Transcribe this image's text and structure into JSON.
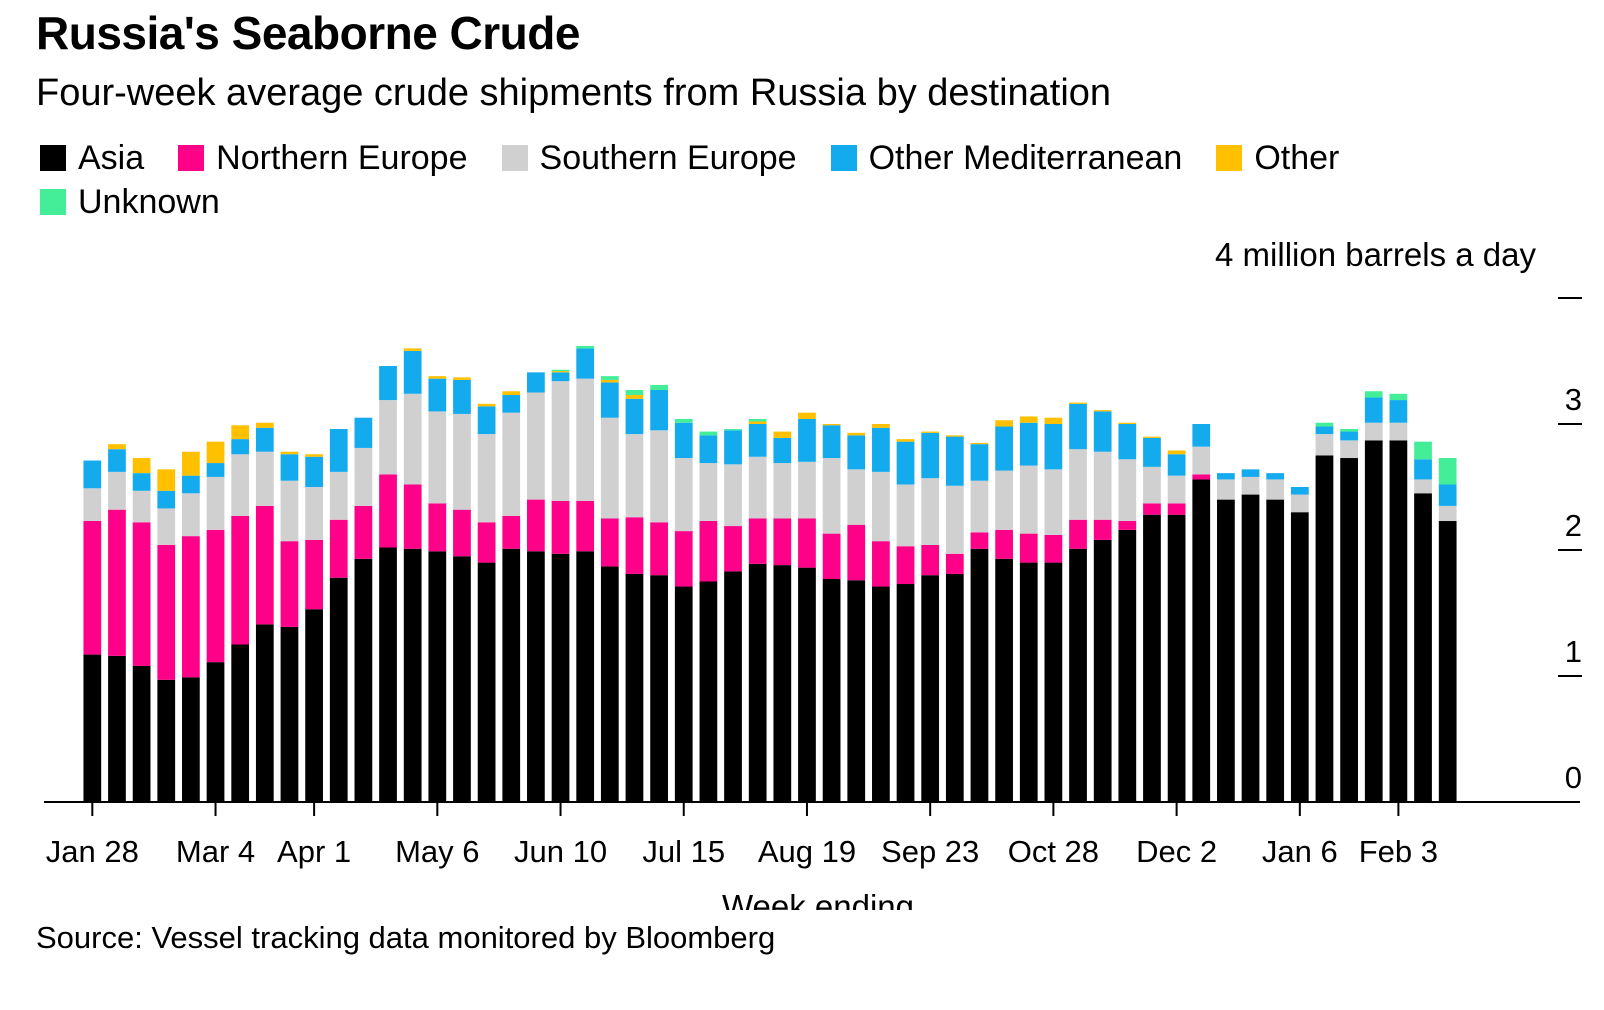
{
  "title": "Russia's Seaborne Crude",
  "subtitle": "Four-week average crude shipments from Russia by destination",
  "source": "Source: Vessel tracking data monitored by Bloomberg",
  "chart_data": {
    "type": "bar",
    "stacked": true,
    "title": "Russia's Seaborne Crude",
    "subtitle": "Four-week average crude shipments from Russia by destination",
    "unit_label": "4 million barrels a day",
    "xlabel": "Week ending",
    "ylabel": "",
    "ylim": [
      0,
      4
    ],
    "y_ticks": [
      "0",
      "1",
      "2",
      "3"
    ],
    "x_tick_labels": [
      "Jan 28",
      "Mar 4",
      "Apr 1",
      "May 6",
      "Jun 10",
      "Jul 15",
      "Aug 19",
      "Sep 23",
      "Oct 28",
      "Dec 2",
      "Jan 6",
      "Feb 3"
    ],
    "x_tick_positions": [
      0,
      5,
      9,
      14,
      19,
      24,
      29,
      34,
      39,
      44,
      49,
      53
    ],
    "bar_count": 56,
    "legend_position": "top-left",
    "series": [
      {
        "name": "Asia",
        "color": "#000000",
        "values": [
          1.17,
          1.16,
          1.08,
          0.97,
          0.99,
          1.11,
          1.25,
          1.41,
          1.39,
          1.53,
          1.78,
          1.93,
          2.02,
          2.01,
          1.99,
          1.95,
          1.9,
          2.01,
          1.99,
          1.97,
          1.99,
          1.87,
          1.81,
          1.8,
          1.71,
          1.75,
          1.83,
          1.89,
          1.88,
          1.86,
          1.77,
          1.76,
          1.71,
          1.73,
          1.8,
          1.81,
          2.01,
          1.93,
          1.9,
          1.9,
          2.01,
          2.08,
          2.16,
          2.28,
          2.28,
          2.56,
          2.4,
          2.44,
          2.4,
          2.3,
          2.75,
          2.73,
          2.87,
          2.87,
          2.45,
          2.23
        ]
      },
      {
        "name": "Northern Europe",
        "color": "#ff0088",
        "values": [
          1.06,
          1.16,
          1.14,
          1.07,
          1.12,
          1.05,
          1.02,
          0.94,
          0.68,
          0.55,
          0.46,
          0.42,
          0.58,
          0.51,
          0.38,
          0.37,
          0.32,
          0.26,
          0.41,
          0.42,
          0.4,
          0.38,
          0.45,
          0.42,
          0.44,
          0.48,
          0.36,
          0.36,
          0.37,
          0.39,
          0.36,
          0.44,
          0.36,
          0.3,
          0.24,
          0.16,
          0.13,
          0.23,
          0.23,
          0.22,
          0.23,
          0.16,
          0.07,
          0.09,
          0.09,
          0.04,
          0,
          0,
          0,
          0,
          0,
          0,
          0,
          0,
          0,
          0
        ]
      },
      {
        "name": "Southern Europe",
        "color": "#d0d0d0",
        "values": [
          0.26,
          0.3,
          0.25,
          0.29,
          0.34,
          0.42,
          0.49,
          0.43,
          0.48,
          0.42,
          0.38,
          0.46,
          0.59,
          0.72,
          0.73,
          0.76,
          0.7,
          0.82,
          0.85,
          0.95,
          0.97,
          0.8,
          0.66,
          0.73,
          0.58,
          0.46,
          0.49,
          0.49,
          0.44,
          0.45,
          0.6,
          0.44,
          0.55,
          0.49,
          0.53,
          0.54,
          0.41,
          0.47,
          0.54,
          0.52,
          0.56,
          0.54,
          0.49,
          0.29,
          0.22,
          0.22,
          0.16,
          0.14,
          0.16,
          0.14,
          0.17,
          0.14,
          0.14,
          0.14,
          0.11,
          0.12
        ]
      },
      {
        "name": "Other Mediterranean",
        "color": "#14aaee",
        "values": [
          0.22,
          0.18,
          0.14,
          0.14,
          0.14,
          0.11,
          0.12,
          0.19,
          0.21,
          0.24,
          0.34,
          0.24,
          0.27,
          0.34,
          0.26,
          0.27,
          0.22,
          0.14,
          0.16,
          0.07,
          0.24,
          0.28,
          0.28,
          0.32,
          0.28,
          0.22,
          0.27,
          0.26,
          0.2,
          0.34,
          0.26,
          0.27,
          0.35,
          0.34,
          0.36,
          0.39,
          0.29,
          0.35,
          0.34,
          0.36,
          0.36,
          0.32,
          0.28,
          0.23,
          0.17,
          0.18,
          0.05,
          0.06,
          0.05,
          0.06,
          0.06,
          0.07,
          0.2,
          0.18,
          0.16,
          0.17
        ]
      },
      {
        "name": "Other",
        "color": "#ffc000",
        "values": [
          0,
          0.04,
          0.12,
          0.17,
          0.19,
          0.17,
          0.11,
          0.04,
          0.02,
          0.02,
          0,
          0,
          0,
          0.02,
          0.02,
          0.02,
          0.02,
          0.03,
          0,
          0.01,
          0,
          0.02,
          0.03,
          0,
          0,
          0,
          0,
          0.02,
          0.05,
          0.05,
          0.01,
          0.02,
          0.03,
          0.02,
          0.01,
          0.01,
          0.01,
          0.05,
          0.05,
          0.05,
          0.01,
          0.01,
          0.01,
          0.01,
          0.03,
          0,
          0,
          0,
          0,
          0,
          0,
          0,
          0,
          0,
          0,
          0
        ]
      },
      {
        "name": "Unknown",
        "color": "#44ee99",
        "values": [
          0,
          0,
          0,
          0,
          0,
          0,
          0,
          0,
          0,
          0,
          0,
          0,
          0,
          0,
          0,
          0,
          0,
          0,
          0,
          0.01,
          0.02,
          0.03,
          0.04,
          0.04,
          0.03,
          0.03,
          0.01,
          0.02,
          0,
          0,
          0,
          0,
          0,
          0,
          0,
          0,
          0,
          0,
          0,
          0,
          0,
          0,
          0,
          0,
          0,
          0,
          0,
          0,
          0,
          0,
          0.03,
          0.02,
          0.05,
          0.05,
          0.14,
          0.21
        ]
      }
    ]
  }
}
